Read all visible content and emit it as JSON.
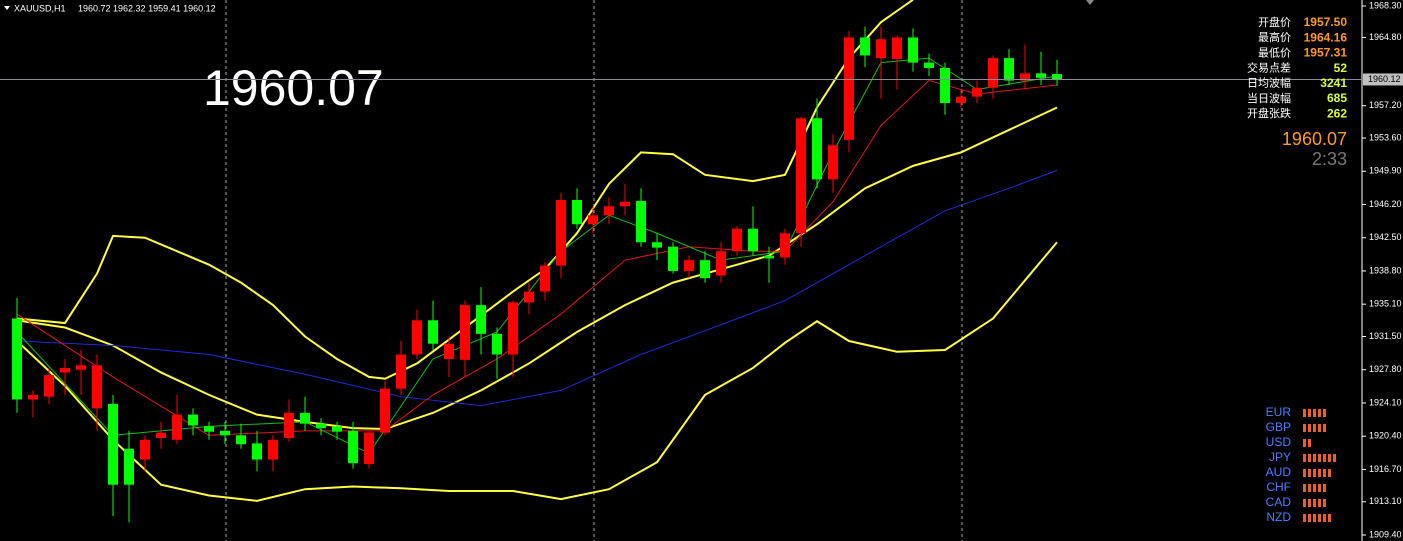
{
  "chart_data": {
    "type": "candlestick",
    "title": "XAUUSD,H1",
    "ohlc_text": "1960.72 1962.32 1959.41 1960.12",
    "big_price": "1960.07",
    "up_color": "#ff0000",
    "down_color": "#00ff00",
    "open": [
      1933.5,
      1924.5,
      1924.8,
      1927.5,
      1927.8,
      1923.5,
      1924.0,
      1919.0,
      1917.8,
      1920.2,
      1920.0,
      1922.8,
      1921.5,
      1921.0,
      1920.5,
      1919.6,
      1917.8,
      1920.2,
      1923.0,
      1921.8,
      1921.5,
      1921.0,
      1917.3,
      1920.8,
      1925.7,
      1929.5,
      1933.3,
      1929.0,
      1928.9,
      1935.0,
      1931.8,
      1929.5,
      1935.3,
      1936.5,
      1939.4,
      1946.7,
      1944.0,
      1945.0,
      1946.0,
      1946.6,
      1942.0,
      1941.5,
      1938.8,
      1940.0,
      1938.3,
      1941.0,
      1943.5,
      1940.5,
      1940.3,
      1943.0,
      1955.8,
      1949.0,
      1953.4,
      1964.8,
      1962.5,
      1962.4,
      1964.8,
      1962.0,
      1961.4,
      1957.5,
      1958.2,
      1959.2,
      1962.5,
      1960.0,
      1960.8,
      1960.72
    ],
    "high": [
      1935.8,
      1925.5,
      1928.0,
      1929.0,
      1930.0,
      1929.5,
      1925.0,
      1921.0,
      1920.5,
      1922.0,
      1925.0,
      1923.5,
      1922.0,
      1922.0,
      1921.8,
      1921.0,
      1920.5,
      1924.5,
      1924.8,
      1922.4,
      1922.0,
      1922.0,
      1921.0,
      1926.5,
      1931.0,
      1934.5,
      1935.5,
      1931.5,
      1935.5,
      1937.0,
      1932.5,
      1935.5,
      1937.5,
      1939.8,
      1947.5,
      1948.0,
      1946.0,
      1947.0,
      1948.5,
      1948.0,
      1943.0,
      1942.0,
      1940.5,
      1941.0,
      1942.0,
      1943.8,
      1946.0,
      1941.5,
      1943.5,
      1956.0,
      1958.0,
      1954.0,
      1965.5,
      1966.0,
      1966.0,
      1965.0,
      1965.8,
      1963.0,
      1962.0,
      1959.0,
      1960.0,
      1962.8,
      1963.5,
      1964.0,
      1963.2,
      1962.32
    ],
    "low": [
      1923.0,
      1922.5,
      1924.0,
      1925.0,
      1925.0,
      1921.0,
      1911.5,
      1910.8,
      1916.5,
      1919.0,
      1919.5,
      1920.5,
      1920.0,
      1919.5,
      1919.0,
      1916.5,
      1916.5,
      1919.8,
      1921.0,
      1920.5,
      1920.0,
      1916.8,
      1916.8,
      1920.5,
      1925.0,
      1929.0,
      1930.0,
      1927.0,
      1927.0,
      1929.5,
      1926.8,
      1927.0,
      1934.0,
      1935.5,
      1938.0,
      1943.5,
      1943.0,
      1944.0,
      1945.0,
      1941.5,
      1940.0,
      1938.5,
      1938.0,
      1937.5,
      1937.5,
      1940.5,
      1940.5,
      1937.5,
      1939.5,
      1941.5,
      1948.0,
      1947.5,
      1952.0,
      1961.5,
      1958.0,
      1959.0,
      1961.0,
      1960.5,
      1956.2,
      1957.0,
      1957.5,
      1958.0,
      1959.5,
      1959.0,
      1959.5,
      1959.41
    ],
    "close": [
      1924.5,
      1925.0,
      1927.2,
      1928.0,
      1928.3,
      1928.3,
      1915.0,
      1915.0,
      1920.0,
      1920.8,
      1922.8,
      1921.6,
      1920.9,
      1920.5,
      1919.5,
      1917.8,
      1920.0,
      1923.0,
      1921.8,
      1921.3,
      1920.9,
      1917.4,
      1920.8,
      1925.7,
      1929.5,
      1933.3,
      1930.7,
      1930.7,
      1935.0,
      1931.8,
      1929.5,
      1935.3,
      1936.5,
      1939.4,
      1946.7,
      1944.0,
      1945.0,
      1946.0,
      1946.5,
      1942.0,
      1941.4,
      1938.8,
      1940.0,
      1938.0,
      1941.0,
      1943.5,
      1941.0,
      1940.2,
      1943.0,
      1955.8,
      1949.0,
      1952.8,
      1964.8,
      1962.8,
      1964.6,
      1964.8,
      1962.0,
      1961.4,
      1957.5,
      1958.2,
      1959.2,
      1962.5,
      1960.0,
      1960.8,
      1960.3,
      1960.12
    ],
    "ylim": [
      1909.4,
      1968.3
    ],
    "yticks": [
      {
        "value": 1968.3,
        "label": "1968.30"
      },
      {
        "value": 1964.8,
        "label": "1964.80"
      },
      {
        "value": 1957.2,
        "label": "1957.20"
      },
      {
        "value": 1953.6,
        "label": "1953.60"
      },
      {
        "value": 1949.9,
        "label": "1949.90"
      },
      {
        "value": 1946.2,
        "label": "1946.20"
      },
      {
        "value": 1942.5,
        "label": "1942.50"
      },
      {
        "value": 1938.8,
        "label": "1938.80"
      },
      {
        "value": 1935.1,
        "label": "1935.10"
      },
      {
        "value": 1931.5,
        "label": "1931.50"
      },
      {
        "value": 1927.8,
        "label": "1927.80"
      },
      {
        "value": 1924.1,
        "label": "1924.10"
      },
      {
        "value": 1920.4,
        "label": "1920.40"
      },
      {
        "value": 1916.7,
        "label": "1916.70"
      },
      {
        "value": 1913.1,
        "label": "1913.10"
      },
      {
        "value": 1909.4,
        "label": "1909.40"
      }
    ],
    "current_price": {
      "value": 1960.12,
      "label": "1960.12"
    },
    "lines": [
      {
        "color": "#ffff40",
        "x": [
          0,
          3,
          5,
          6,
          8,
          10,
          12,
          14,
          16,
          18,
          20,
          22,
          23,
          25,
          28,
          31,
          33,
          35,
          37,
          39,
          41,
          43,
          46,
          48,
          50,
          52,
          54,
          56
        ],
        "values": [
          1933.5,
          1933.0,
          1938.5,
          1942.7,
          1942.5,
          1941,
          1939.5,
          1937.5,
          1935,
          1931.5,
          1929,
          1927,
          1926.8,
          1928.5,
          1932.5,
          1936.5,
          1939,
          1943,
          1948.5,
          1952,
          1951.8,
          1949.5,
          1948.8,
          1949.5,
          1957,
          1962.5,
          1966.5,
          1969
        ]
      },
      {
        "color": "#ffff40",
        "x": [
          0,
          3,
          6,
          9,
          12,
          15,
          18,
          21,
          23,
          26,
          29,
          32,
          35,
          38,
          41,
          44,
          47,
          50,
          53,
          56,
          59,
          62,
          65
        ],
        "values": [
          1933.3,
          1932.5,
          1930.5,
          1927.5,
          1925,
          1922.8,
          1922,
          1921.3,
          1921.2,
          1923,
          1925.5,
          1928.5,
          1932,
          1935,
          1937.5,
          1939,
          1940.5,
          1944,
          1948,
          1950.5,
          1952,
          1954.5,
          1957
        ]
      },
      {
        "color": "#ffff40",
        "x": [
          0,
          3,
          6,
          9,
          12,
          15,
          18,
          21,
          24,
          27,
          31,
          34,
          37,
          40,
          43,
          46,
          48,
          50,
          52,
          55,
          58,
          61,
          65
        ],
        "values": [
          1931,
          1926,
          1920,
          1915,
          1913.8,
          1913.2,
          1914.5,
          1914.8,
          1914.6,
          1914.3,
          1914.3,
          1913.4,
          1914.5,
          1917.5,
          1925,
          1928,
          1930.8,
          1933.2,
          1931,
          1929.8,
          1930,
          1933.5,
          1942
        ]
      },
      {
        "color": "#1c2cd8",
        "x": [
          0,
          6,
          12,
          18,
          24,
          29,
          34,
          39,
          44,
          48,
          53,
          58,
          62,
          65
        ],
        "values": [
          1931,
          1930.5,
          1929.5,
          1927.3,
          1924.8,
          1923.8,
          1925.5,
          1929.5,
          1932.8,
          1935.5,
          1940.5,
          1945.5,
          1948,
          1950
        ]
      },
      {
        "color": "#e01818",
        "x": [
          0,
          6,
          12,
          18,
          23,
          26,
          30,
          34,
          38,
          42,
          46,
          48,
          51,
          54,
          57,
          60,
          65
        ],
        "values": [
          1934,
          1927,
          1920.5,
          1921,
          1921,
          1925,
          1929,
          1934,
          1940,
          1941.5,
          1941,
          1941,
          1946.5,
          1955,
          1960,
          1958.5,
          1959.5
        ]
      },
      {
        "color": "#10c010",
        "x": [
          0,
          6,
          12,
          18,
          22,
          26,
          30,
          34,
          37,
          40,
          44,
          48,
          51,
          54,
          57,
          60,
          65
        ],
        "values": [
          1932,
          1920.5,
          1921.5,
          1922,
          1918.5,
          1929,
          1932,
          1941,
          1945,
          1943,
          1940,
          1941,
          1952,
          1962,
          1962.5,
          1959,
          1960.5
        ]
      }
    ]
  },
  "info_panel": {
    "rows": [
      {
        "label": "开盘价",
        "value": "1957.50"
      },
      {
        "label": "最高价",
        "value": "1964.16"
      },
      {
        "label": "最低价",
        "value": "1957.31"
      },
      {
        "label": "交易点差",
        "value": "52"
      },
      {
        "label": "日均波幅",
        "value": "3241"
      },
      {
        "label": "当日波幅",
        "value": "685"
      },
      {
        "label": "开盘张跌",
        "value": "262"
      }
    ],
    "price": "1960.07",
    "timer": "2:33"
  },
  "currency_strength": {
    "names": [
      "EUR",
      "GBP",
      "USD",
      "JPY",
      "AUD",
      "CHF",
      "CAD",
      "NZD"
    ],
    "values": [
      5,
      5,
      2,
      7,
      6,
      5,
      5,
      6
    ]
  }
}
